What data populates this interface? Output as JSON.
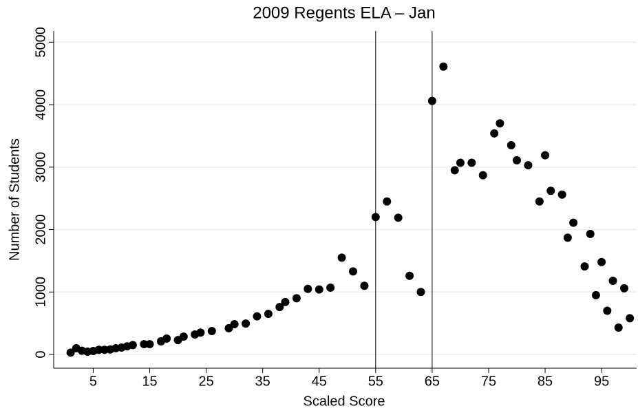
{
  "chart_data": {
    "type": "scatter",
    "title": "2009 Regents ELA – Jan",
    "xlabel": "Scaled Score",
    "ylabel": "Number of Students",
    "color": "#000000",
    "x": [
      1,
      2,
      3,
      4,
      5,
      6,
      7,
      8,
      9,
      10,
      11,
      12,
      14,
      15,
      17,
      18,
      20,
      21,
      23,
      24,
      26,
      29,
      30,
      32,
      34,
      36,
      38,
      39,
      41,
      43,
      45,
      47,
      49,
      51,
      53,
      55,
      57,
      59,
      61,
      63,
      65,
      67,
      69,
      70,
      72,
      74,
      76,
      77,
      79,
      80,
      82,
      84,
      85,
      86,
      88,
      89,
      90,
      92,
      93,
      94,
      95,
      96,
      97,
      98,
      99,
      100
    ],
    "values": [
      30,
      100,
      60,
      45,
      55,
      75,
      75,
      80,
      100,
      110,
      130,
      150,
      165,
      165,
      210,
      255,
      230,
      285,
      320,
      350,
      375,
      420,
      485,
      495,
      610,
      650,
      760,
      840,
      900,
      1050,
      1040,
      1070,
      1550,
      1330,
      1100,
      2200,
      2450,
      2190,
      1260,
      1000,
      4060,
      4610,
      2950,
      3070,
      3070,
      2870,
      3540,
      3700,
      3350,
      3110,
      3030,
      2450,
      3190,
      2620,
      2560,
      1870,
      2110,
      1410,
      1930,
      950,
      1480,
      700,
      1180,
      430,
      1060,
      580
    ],
    "xlim": [
      -2,
      101.2
    ],
    "xticks": [
      5,
      15,
      25,
      35,
      45,
      55,
      65,
      75,
      85,
      95
    ],
    "ylim": [
      -220,
      5180
    ],
    "yticks": [
      0,
      1000,
      2000,
      3000,
      4000,
      5000
    ],
    "vlines": [
      55,
      65
    ],
    "grid": true
  }
}
